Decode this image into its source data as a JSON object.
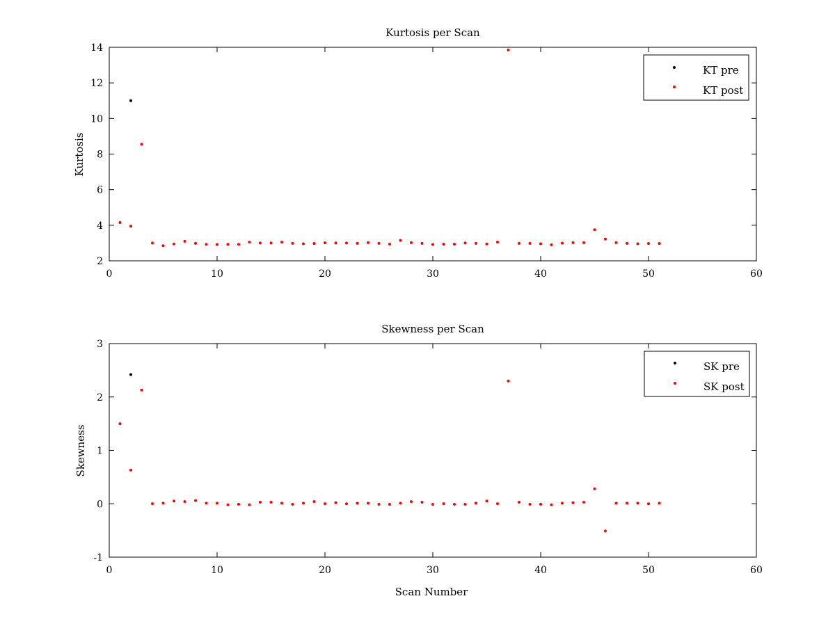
{
  "chart_data": [
    {
      "type": "scatter",
      "title": "Kurtosis per Scan",
      "xlabel": "",
      "ylabel": "Kurtosis",
      "xlim": [
        0,
        60
      ],
      "ylim": [
        2,
        14
      ],
      "xticks": [
        0,
        10,
        20,
        30,
        40,
        50,
        60
      ],
      "yticks": [
        2,
        4,
        6,
        8,
        10,
        12,
        14
      ],
      "grid": false,
      "legend_position": "top-right",
      "series": [
        {
          "name": "KT pre",
          "color": "#000000",
          "x": [
            2
          ],
          "y": [
            11.0
          ]
        },
        {
          "name": "KT post",
          "color": "#ff0000",
          "x": [
            1,
            2,
            3,
            4,
            5,
            6,
            7,
            8,
            9,
            10,
            11,
            12,
            13,
            14,
            15,
            16,
            17,
            18,
            19,
            20,
            21,
            22,
            23,
            24,
            25,
            26,
            27,
            28,
            29,
            30,
            31,
            32,
            33,
            34,
            35,
            36,
            37,
            38,
            39,
            40,
            41,
            42,
            43,
            44,
            45,
            46,
            47,
            48,
            49,
            50,
            51
          ],
          "y": [
            4.15,
            3.95,
            8.55,
            3.0,
            2.85,
            2.95,
            3.1,
            2.98,
            2.93,
            2.92,
            2.93,
            2.93,
            3.05,
            3.0,
            3.0,
            3.05,
            2.98,
            2.96,
            2.97,
            3.01,
            3.0,
            3.0,
            2.98,
            3.02,
            2.98,
            2.94,
            3.15,
            3.02,
            2.98,
            2.92,
            2.94,
            2.94,
            3.0,
            2.98,
            2.95,
            3.05,
            13.85,
            2.98,
            2.98,
            2.96,
            2.9,
            2.99,
            3.02,
            3.02,
            3.75,
            3.22,
            3.02,
            2.98,
            2.96,
            2.97,
            2.97
          ]
        }
      ]
    },
    {
      "type": "scatter",
      "title": "Skewness per Scan",
      "xlabel": "Scan Number",
      "ylabel": "Skewness",
      "xlim": [
        0,
        60
      ],
      "ylim": [
        -1,
        3
      ],
      "xticks": [
        0,
        10,
        20,
        30,
        40,
        50,
        60
      ],
      "yticks": [
        -1,
        0,
        1,
        2,
        3
      ],
      "grid": false,
      "legend_position": "top-right",
      "series": [
        {
          "name": "SK pre",
          "color": "#000000",
          "x": [
            2
          ],
          "y": [
            2.42
          ]
        },
        {
          "name": "SK post",
          "color": "#ff0000",
          "x": [
            1,
            2,
            3,
            4,
            5,
            6,
            7,
            8,
            9,
            10,
            11,
            12,
            13,
            14,
            15,
            16,
            17,
            18,
            19,
            20,
            21,
            22,
            23,
            24,
            25,
            26,
            27,
            28,
            29,
            30,
            31,
            32,
            33,
            34,
            35,
            36,
            37,
            38,
            39,
            40,
            41,
            42,
            43,
            44,
            45,
            46,
            47,
            48,
            49,
            50,
            51
          ],
          "y": [
            1.5,
            0.63,
            2.13,
            0.0,
            0.01,
            0.05,
            0.04,
            0.06,
            0.01,
            0.01,
            -0.02,
            -0.01,
            -0.02,
            0.03,
            0.03,
            0.01,
            -0.01,
            0.01,
            0.04,
            0.0,
            0.02,
            0.0,
            0.01,
            0.01,
            -0.01,
            -0.01,
            0.01,
            0.04,
            0.03,
            -0.01,
            0.0,
            -0.01,
            -0.01,
            0.01,
            0.05,
            0.0,
            2.3,
            0.03,
            -0.01,
            -0.01,
            -0.02,
            0.01,
            0.02,
            0.03,
            0.28,
            -0.51,
            0.01,
            0.01,
            0.01,
            0.0,
            0.01
          ]
        }
      ]
    }
  ]
}
